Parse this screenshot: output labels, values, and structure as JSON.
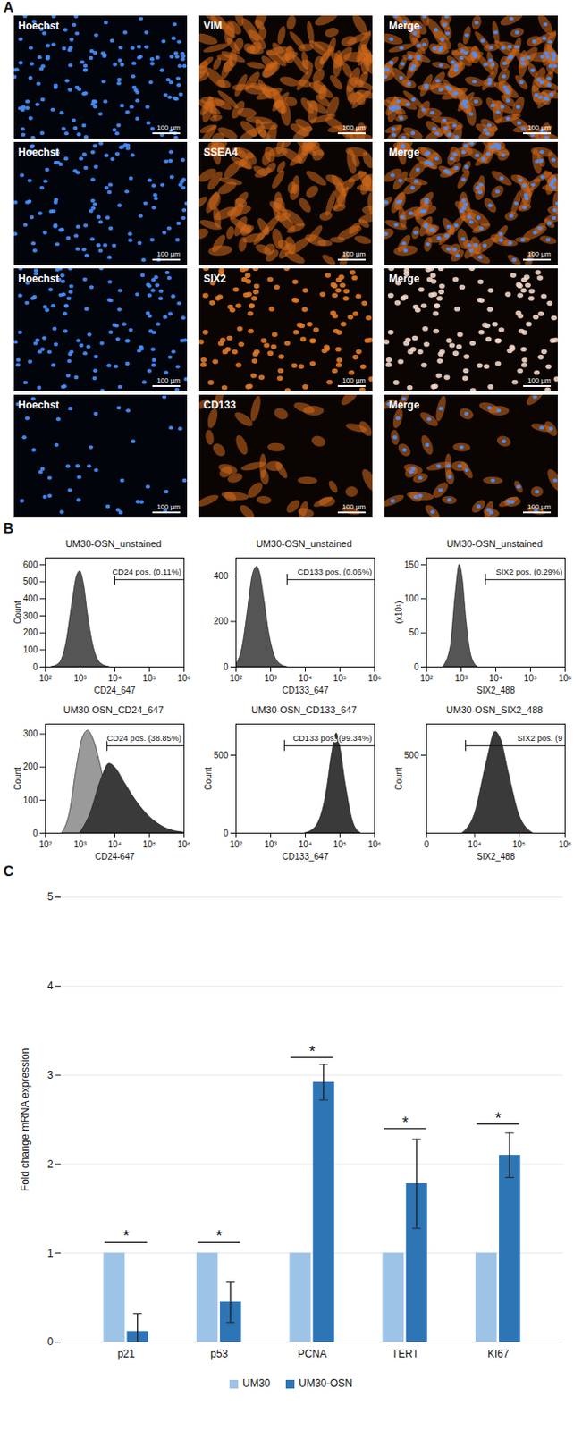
{
  "panel_labels": [
    "A",
    "B",
    "C"
  ],
  "panel_a": {
    "scale_bar": "100 µm",
    "rows": [
      [
        "Hoechst",
        "VIM",
        "Merge"
      ],
      [
        "Hoechst",
        "SSEA4",
        "Merge"
      ],
      [
        "Hoechst",
        "SIX2",
        "Merge"
      ],
      [
        "Hoechst",
        "CD133",
        "Merge"
      ]
    ]
  },
  "chart_data": [
    {
      "type": "area",
      "title": "UM30-OSN_unstained",
      "xlabel": "CD24_647",
      "ylabel": "Count",
      "log": "x",
      "xlim": [
        100,
        1000000
      ],
      "xticks": [
        {
          "value": 100,
          "label": "10²"
        },
        {
          "value": 1000,
          "label": "10³"
        },
        {
          "value": 10000,
          "label": "10⁴"
        },
        {
          "value": 100000,
          "label": "10⁵"
        },
        {
          "value": 1000000,
          "label": "10⁶"
        }
      ],
      "ylim": [
        0,
        640
      ],
      "yticks": [
        0,
        100,
        200,
        300,
        400,
        500,
        600
      ],
      "series": [
        {
          "color": "#555555",
          "x": [
            150,
            250,
            400,
            600,
            800,
            1000,
            1300,
            1700,
            2500,
            4000,
            7000
          ],
          "values": [
            0,
            20,
            140,
            380,
            530,
            560,
            480,
            300,
            110,
            20,
            0
          ]
        }
      ],
      "gate": {
        "start": 10000,
        "end": 1000000,
        "label": "CD24 pos. (0.11%)"
      }
    },
    {
      "type": "area",
      "title": "UM30-OSN_unstained",
      "xlabel": "CD133_647",
      "log": "x",
      "xlim": [
        100,
        1000000
      ],
      "xticks": [
        {
          "value": 100,
          "label": "10²"
        },
        {
          "value": 1000,
          "label": "10³"
        },
        {
          "value": 10000,
          "label": "10⁴"
        },
        {
          "value": 100000,
          "label": "10⁵"
        },
        {
          "value": 1000000,
          "label": "10⁶"
        }
      ],
      "ylim": [
        0,
        480
      ],
      "yticks": [
        0,
        200,
        400
      ],
      "series": [
        {
          "color": "#555555",
          "x": [
            100,
            150,
            220,
            300,
            400,
            500,
            650,
            900,
            1300,
            2000,
            3000
          ],
          "values": [
            10,
            80,
            250,
            400,
            440,
            410,
            300,
            150,
            50,
            10,
            0
          ]
        }
      ],
      "gate": {
        "start": 3000,
        "end": 1000000,
        "label": "CD133 pos. (0.06%)"
      }
    },
    {
      "type": "area",
      "title": "UM30-OSN_unstained",
      "xlabel": "SIX2_488",
      "ylabel": "(x10¹)",
      "log": "x",
      "xlim": [
        100,
        1000000
      ],
      "xticks": [
        {
          "value": 100,
          "label": "10²"
        },
        {
          "value": 1000,
          "label": "10³"
        },
        {
          "value": 10000,
          "label": "10⁴"
        },
        {
          "value": 100000,
          "label": "10⁵"
        },
        {
          "value": 1000000,
          "label": "10⁶"
        }
      ],
      "ylim": [
        0,
        160
      ],
      "yticks": [
        0,
        50,
        100,
        150
      ],
      "series": [
        {
          "color": "#555555",
          "x": [
            300,
            500,
            700,
            900,
            1100,
            1400,
            2000,
            3000
          ],
          "values": [
            0,
            30,
            110,
            150,
            130,
            70,
            15,
            0
          ]
        }
      ],
      "gate": {
        "start": 5000,
        "end": 1000000,
        "label": "SIX2 pos. (0.29%)"
      }
    },
    {
      "type": "area",
      "title": "UM30-OSN_CD24_647",
      "xlabel": "CD24-647",
      "ylabel": "Count",
      "log": "x",
      "xlim": [
        100,
        1000000
      ],
      "xticks": [
        {
          "value": 100,
          "label": "10²"
        },
        {
          "value": 1000,
          "label": "10³"
        },
        {
          "value": 10000,
          "label": "10⁴"
        },
        {
          "value": 100000,
          "label": "10⁵"
        },
        {
          "value": 1000000,
          "label": "10⁶"
        }
      ],
      "ylim": [
        0,
        330
      ],
      "yticks": [
        0,
        100,
        200,
        300
      ],
      "series": [
        {
          "color": "#9a9a9a",
          "x": [
            300,
            500,
            800,
            1200,
            1700,
            2500,
            4000,
            6000,
            9000,
            15000
          ],
          "values": [
            0,
            60,
            200,
            290,
            310,
            280,
            200,
            110,
            40,
            0
          ]
        },
        {
          "color": "#3a3a3a",
          "x": [
            1000,
            2000,
            4000,
            7000,
            10000,
            20000,
            40000,
            100000,
            300000,
            1000000
          ],
          "values": [
            0,
            60,
            160,
            210,
            200,
            150,
            100,
            50,
            15,
            2
          ]
        }
      ],
      "gate": {
        "start": 6000,
        "end": 1000000,
        "label": "CD24 pos. (38.85%)"
      }
    },
    {
      "type": "area",
      "title": "UM30-OSN_CD133_647",
      "xlabel": "CD133_647",
      "ylabel": "Count",
      "log": "x",
      "xlim": [
        100,
        1000000
      ],
      "xticks": [
        {
          "value": 100,
          "label": "10²"
        },
        {
          "value": 1000,
          "label": "10³"
        },
        {
          "value": 10000,
          "label": "10⁴"
        },
        {
          "value": 100000,
          "label": "10⁵"
        },
        {
          "value": 1000000,
          "label": "10⁶"
        }
      ],
      "ylim": [
        0,
        700
      ],
      "yticks": [
        0,
        500
      ],
      "series": [
        {
          "color": "#3a3a3a",
          "x": [
            10000,
            20000,
            40000,
            60000,
            80000,
            100000,
            150000,
            250000,
            400000
          ],
          "values": [
            0,
            40,
            250,
            520,
            640,
            560,
            300,
            60,
            0
          ]
        }
      ],
      "gate": {
        "start": 2500,
        "end": 1000000,
        "label": "CD133 pos. (99.34%)"
      }
    },
    {
      "type": "area",
      "title": "UM30-OSN_SIX2_488",
      "xlabel": "SIX2_488",
      "ylabel": "Count",
      "log": "x",
      "xlim": [
        0,
        1000000
      ],
      "xticks": [
        0,
        {
          "value": 10000,
          "label": "10⁴"
        },
        {
          "value": 100000,
          "label": "10⁵"
        },
        {
          "value": 1000000,
          "label": "10⁶"
        }
      ],
      "ylim": [
        0,
        700
      ],
      "yticks": [
        500
      ],
      "series": [
        {
          "color": "#3a3a3a",
          "x": [
            5000,
            10000,
            20000,
            30000,
            40000,
            60000,
            100000,
            200000
          ],
          "values": [
            0,
            120,
            480,
            650,
            600,
            380,
            120,
            0
          ]
        }
      ],
      "gate": {
        "start": 6000,
        "end": 1000000,
        "label": "SIX2 pos. (9"
      }
    },
    {
      "type": "bar",
      "ylabel": "Fold change mRNA expression",
      "categories": [
        "p21",
        "p53",
        "PCNA",
        "TERT",
        "KI67"
      ],
      "ylim": [
        0,
        5
      ],
      "yticks": [
        0,
        1,
        2,
        3,
        4,
        5
      ],
      "grid": true,
      "legend": "bottom",
      "series": [
        {
          "name": "UM30",
          "color": "#9dc3e6",
          "values": [
            1,
            1,
            1,
            1,
            1
          ]
        },
        {
          "name": "UM30-OSN",
          "color": "#2e75b6",
          "values": [
            0.12,
            0.45,
            2.92,
            1.78,
            2.1
          ],
          "errors": [
            0.2,
            0.23,
            0.2,
            0.5,
            0.25
          ]
        }
      ],
      "annotations": [
        {
          "category": "p21",
          "text": "*",
          "y": 1.12
        },
        {
          "category": "p53",
          "text": "*",
          "y": 1.12
        },
        {
          "category": "PCNA",
          "text": "*",
          "y": 3.2
        },
        {
          "category": "TERT",
          "text": "*",
          "y": 2.4
        },
        {
          "category": "KI67",
          "text": "*",
          "y": 2.45
        }
      ]
    }
  ]
}
